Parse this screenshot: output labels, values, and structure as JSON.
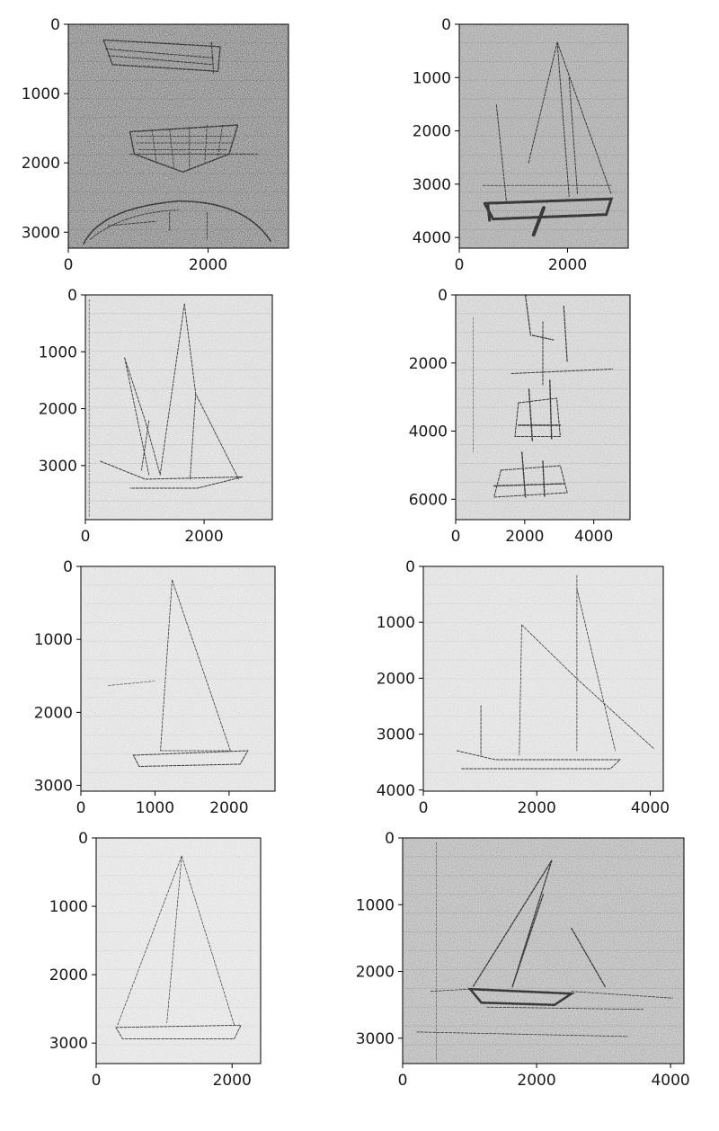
{
  "figure": {
    "panels": [
      {
        "name": "panel-rowboat-sketches",
        "subject": "three rowboat hull sketches",
        "background": "#bdbdbd",
        "ink": "#2e2e2e",
        "noise": 0.9,
        "xlim": [
          0,
          3150
        ],
        "ylim": [
          3230,
          0
        ],
        "xticks": [
          "0",
          "2000"
        ],
        "yticks": [
          "0",
          "1000",
          "2000",
          "3000"
        ],
        "xtick_values": [
          0,
          2000
        ],
        "ytick_values": [
          0,
          1000,
          2000,
          3000
        ]
      },
      {
        "name": "panel-sloop-dark",
        "subject": "sloop sailboat with keel",
        "background": "#c9c9c9",
        "ink": "#2a2a2a",
        "noise": 0.5,
        "xlim": [
          0,
          3120
        ],
        "ylim": [
          4200,
          0
        ],
        "xticks": [
          "0",
          "2000"
        ],
        "yticks": [
          "0",
          "1000",
          "2000",
          "3000",
          "4000"
        ],
        "xtick_values": [
          0,
          2000
        ],
        "ytick_values": [
          0,
          1000,
          2000,
          3000,
          4000
        ]
      },
      {
        "name": "panel-schooner-sketch",
        "subject": "two-masted sailboat sketch",
        "background": "#ececec",
        "ink": "#3c3c3c",
        "noise": 0.25,
        "xlim": [
          0,
          3150
        ],
        "ylim": [
          3950,
          0
        ],
        "xticks": [
          "0",
          "2000"
        ],
        "yticks": [
          "0",
          "1000",
          "2000",
          "3000"
        ],
        "xtick_values": [
          0,
          2000
        ],
        "ytick_values": [
          0,
          1000,
          2000,
          3000
        ]
      },
      {
        "name": "panel-three-boats",
        "subject": "three small sailboats stacked",
        "background": "#e6e6e6",
        "ink": "#333333",
        "noise": 0.3,
        "xlim": [
          0,
          5050
        ],
        "ylim": [
          6600,
          0
        ],
        "xticks": [
          "0",
          "2000",
          "4000"
        ],
        "yticks": [
          "0",
          "2000",
          "4000",
          "6000"
        ],
        "xtick_values": [
          0,
          2000,
          4000
        ],
        "ytick_values": [
          0,
          2000,
          4000,
          6000
        ]
      },
      {
        "name": "panel-faint-sloop",
        "subject": "faint sloop sketch",
        "background": "#efefef",
        "ink": "#8a8a8a",
        "noise": 0.2,
        "xlim": [
          0,
          2620
        ],
        "ylim": [
          3080,
          0
        ],
        "xticks": [
          "0",
          "1000",
          "2000"
        ],
        "yticks": [
          "0",
          "1000",
          "2000",
          "3000"
        ],
        "xtick_values": [
          0,
          1000,
          2000
        ],
        "ytick_values": [
          0,
          1000,
          2000,
          3000
        ]
      },
      {
        "name": "panel-faint-ketch",
        "subject": "faint ketch sketch",
        "background": "#eeeeee",
        "ink": "#8c8c8c",
        "noise": 0.2,
        "xlim": [
          0,
          4230
        ],
        "ylim": [
          4020,
          0
        ],
        "xticks": [
          "0",
          "2000",
          "4000"
        ],
        "yticks": [
          "0",
          "1000",
          "2000",
          "3000",
          "4000"
        ],
        "xtick_values": [
          0,
          2000,
          4000
        ],
        "ytick_values": [
          0,
          1000,
          2000,
          3000,
          4000
        ]
      },
      {
        "name": "panel-light-sloop",
        "subject": "light sloop sketch",
        "background": "#f1f1f1",
        "ink": "#8e8e8e",
        "noise": 0.2,
        "xlim": [
          0,
          2420
        ],
        "ylim": [
          3300,
          0
        ],
        "xticks": [
          "0",
          "2000"
        ],
        "yticks": [
          "0",
          "1000",
          "2000",
          "3000"
        ],
        "xtick_values": [
          0,
          2000
        ],
        "ytick_values": [
          0,
          1000,
          2000,
          3000
        ]
      },
      {
        "name": "panel-sailboat-waves",
        "subject": "sailboat on water sketch",
        "background": "#d4d4d4",
        "ink": "#2f2f2f",
        "noise": 0.45,
        "xlim": [
          0,
          4200
        ],
        "ylim": [
          3380,
          0
        ],
        "xticks": [
          "0",
          "2000",
          "4000"
        ],
        "yticks": [
          "0",
          "1000",
          "2000",
          "3000"
        ],
        "xtick_values": [
          0,
          2000,
          4000
        ],
        "ytick_values": [
          0,
          1000,
          2000,
          3000
        ]
      }
    ]
  },
  "chart_data": [
    {
      "type": "image",
      "xlim": [
        0,
        3150
      ],
      "ylim": [
        3230,
        0
      ],
      "xticks": [
        0,
        2000
      ],
      "yticks": [
        0,
        1000,
        2000,
        3000
      ],
      "grid": false
    },
    {
      "type": "image",
      "xlim": [
        0,
        3120
      ],
      "ylim": [
        4200,
        0
      ],
      "xticks": [
        0,
        2000
      ],
      "yticks": [
        0,
        1000,
        2000,
        3000,
        4000
      ],
      "grid": false
    },
    {
      "type": "image",
      "xlim": [
        0,
        3150
      ],
      "ylim": [
        3950,
        0
      ],
      "xticks": [
        0,
        2000
      ],
      "yticks": [
        0,
        1000,
        2000,
        3000
      ],
      "grid": false
    },
    {
      "type": "image",
      "xlim": [
        0,
        5050
      ],
      "ylim": [
        6600,
        0
      ],
      "xticks": [
        0,
        2000,
        4000
      ],
      "yticks": [
        0,
        2000,
        4000,
        6000
      ],
      "grid": false
    },
    {
      "type": "image",
      "xlim": [
        0,
        2620
      ],
      "ylim": [
        3080,
        0
      ],
      "xticks": [
        0,
        1000,
        2000
      ],
      "yticks": [
        0,
        1000,
        2000,
        3000
      ],
      "grid": false
    },
    {
      "type": "image",
      "xlim": [
        0,
        4230
      ],
      "ylim": [
        4020,
        0
      ],
      "xticks": [
        0,
        2000,
        4000
      ],
      "yticks": [
        0,
        1000,
        2000,
        3000,
        4000
      ],
      "grid": false
    },
    {
      "type": "image",
      "xlim": [
        0,
        2420
      ],
      "ylim": [
        3300,
        0
      ],
      "xticks": [
        0,
        2000
      ],
      "yticks": [
        0,
        1000,
        2000,
        3000
      ],
      "grid": false
    },
    {
      "type": "image",
      "xlim": [
        0,
        4200
      ],
      "ylim": [
        3380,
        0
      ],
      "xticks": [
        0,
        2000,
        4000
      ],
      "yticks": [
        0,
        1000,
        2000,
        3000
      ],
      "grid": false
    }
  ]
}
